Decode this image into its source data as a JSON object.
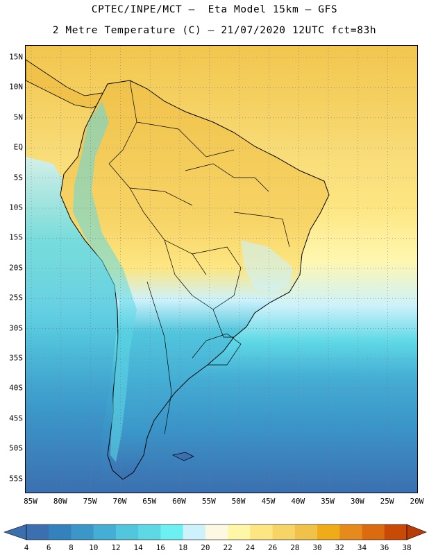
{
  "header": {
    "line1": "CPTEC/INPE/MCT –  Eta Model 15km – GFS",
    "line2": "2 Metre Temperature (C) – 21/07/2020 12UTC fct=83h"
  },
  "map": {
    "lat_labels": [
      "15N",
      "10N",
      "5N",
      "EQ",
      "5S",
      "10S",
      "15S",
      "20S",
      "25S",
      "30S",
      "35S",
      "40S",
      "45S",
      "50S",
      "55S"
    ],
    "lon_labels": [
      "85W",
      "80W",
      "75W",
      "70W",
      "65W",
      "60W",
      "55W",
      "50W",
      "45W",
      "40W",
      "35W",
      "30W",
      "25W",
      "20W"
    ]
  },
  "colorbar": {
    "labels": [
      "4",
      "6",
      "8",
      "10",
      "12",
      "14",
      "16",
      "18",
      "20",
      "22",
      "24",
      "26",
      "28",
      "30",
      "32",
      "34",
      "36",
      "38"
    ],
    "colors": [
      "#3b6fb0",
      "#3482bd",
      "#3b97c9",
      "#45aed4",
      "#52c6dd",
      "#5fd8e6",
      "#6df0f2",
      "#cdf2fb",
      "#fdf8e1",
      "#fff7a8",
      "#fde682",
      "#f7d466",
      "#f0c24a",
      "#efab18",
      "#e68a1c",
      "#dc6a0e",
      "#c94a06"
    ]
  }
}
